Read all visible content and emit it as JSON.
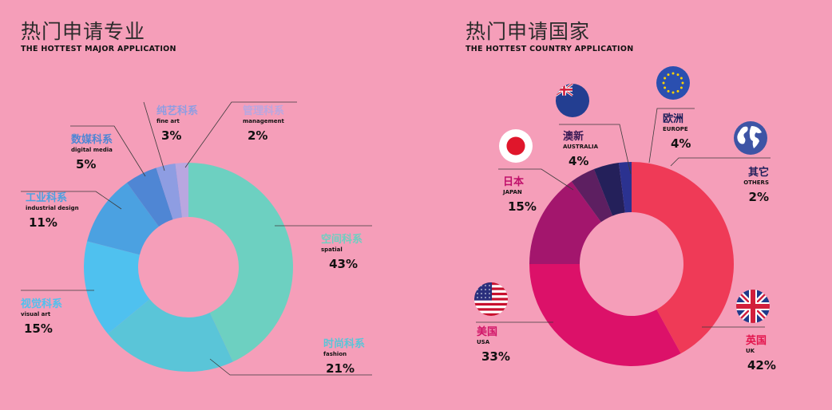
{
  "colors": {
    "background": "#f59eb9"
  },
  "chart_data": [
    {
      "type": "pie",
      "title": "热门申请专业",
      "subtitle": "THE HOTTEST MAJOR APPLICATION",
      "categories": [
        "空间科系",
        "时尚科系",
        "视觉科系",
        "工业科系",
        "数媒科系",
        "纯艺科系",
        "管理科系"
      ],
      "categories_en": [
        "spatial",
        "fashion",
        "visual art",
        "industrial design",
        "digital media",
        "fine art",
        "management"
      ],
      "values": [
        43,
        21,
        15,
        11,
        5,
        3,
        2
      ],
      "value_labels": [
        "43%",
        "21%",
        "15%",
        "11%",
        "5%",
        "3%",
        "2%"
      ],
      "colors": [
        "#6dd0c1",
        "#5ac5d8",
        "#4fc1ef",
        "#4ba1e1",
        "#4f86d4",
        "#8e9de2",
        "#b9a7e0"
      ],
      "label_colors": [
        "#6dd0c1",
        "#5ac5d8",
        "#4fc1ef",
        "#4ba1e1",
        "#4f86d4",
        "#8e9de2",
        "#b9a7e0"
      ]
    },
    {
      "type": "pie",
      "title": "热门申请国家",
      "subtitle": "THE HOTTEST COUNTRY APPLICATION",
      "categories": [
        "英国",
        "美国",
        "日本",
        "澳新",
        "欧洲",
        "其它"
      ],
      "categories_en": [
        "UK",
        "USA",
        "JAPAN",
        "AUSTRALIA",
        "EUROPE",
        "OTHERS"
      ],
      "values": [
        42,
        33,
        15,
        4,
        4,
        2
      ],
      "value_labels": [
        "42%",
        "33%",
        "15%",
        "4%",
        "4%",
        "2%"
      ],
      "colors": [
        "#ef3a57",
        "#dc1169",
        "#a3166d",
        "#5d1f61",
        "#24205a",
        "#2b3290"
      ],
      "label_colors": [
        "#e3154d",
        "#d01467",
        "#c0106b",
        "#3a1a55",
        "#1e1e5a",
        "#1e1e5a"
      ],
      "icons": [
        "uk-flag-icon",
        "usa-flag-icon",
        "japan-flag-icon",
        "australia-flag-icon",
        "eu-flag-icon",
        "globe-icon"
      ]
    }
  ]
}
